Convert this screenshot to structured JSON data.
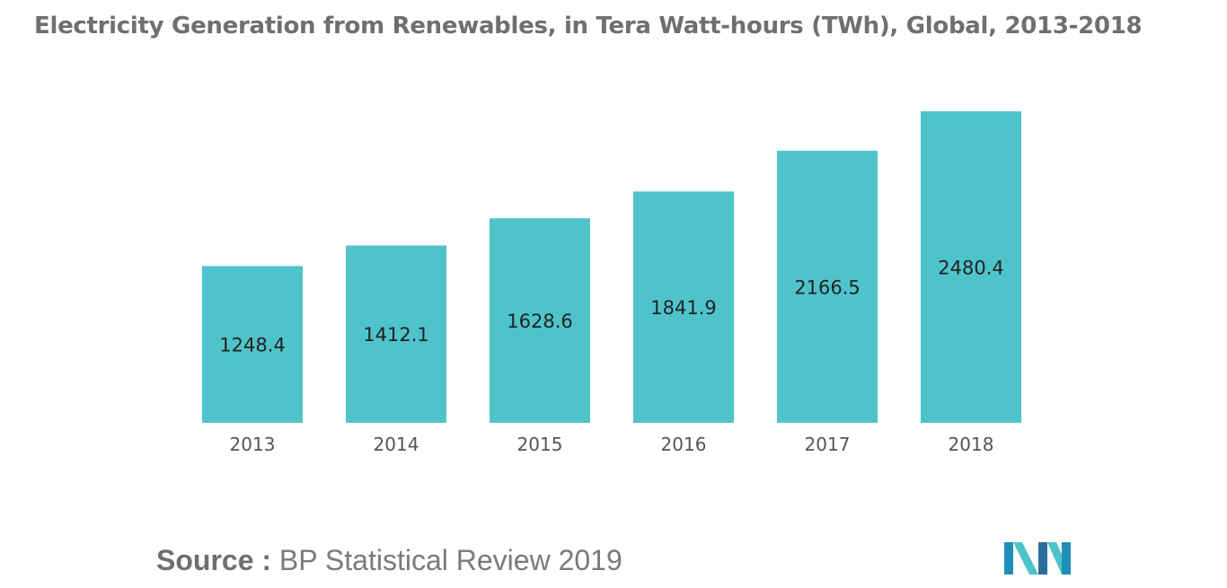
{
  "title": "Electricity Generation from Renewables, in Tera Watt-hours (TWh), Global, 2013-2018",
  "source": {
    "label": "Source :",
    "text": "BP Statistical Review 2019"
  },
  "logo": {
    "icon": "mordor-intelligence-logo-icon",
    "colors": [
      "#1e8fb8",
      "#4fc3ca",
      "#2a6f9a"
    ]
  },
  "colors": {
    "bar": "#4fc3ca",
    "value_label": "#222222",
    "tick_label": "#555555",
    "title": "#6f6f6f"
  },
  "chart_data": {
    "type": "bar",
    "title": "Electricity Generation from Renewables, in Tera Watt-hours (TWh), Global, 2013-2018",
    "categories": [
      "2013",
      "2014",
      "2015",
      "2016",
      "2017",
      "2018"
    ],
    "values": [
      1248.4,
      1412.1,
      1628.6,
      1841.9,
      2166.5,
      2480.4
    ],
    "value_labels": [
      "1248.4",
      "1412.1",
      "1628.6",
      "1841.9",
      "2166.5",
      "2480.4"
    ],
    "xlabel": "",
    "ylabel": "",
    "ylim": [
      0,
      2480.4
    ],
    "grid": false,
    "legend": "none"
  }
}
